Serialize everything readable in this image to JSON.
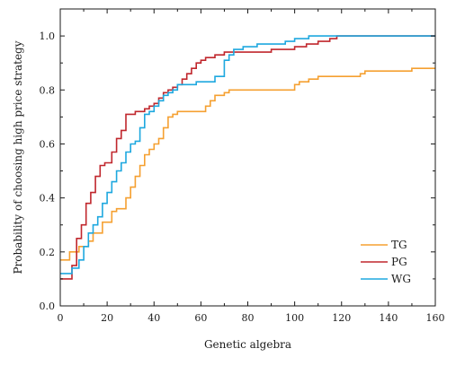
{
  "chart_data": {
    "type": "line",
    "title": "",
    "xlabel": "Genetic algebra",
    "ylabel": "Probability of choosing high price strategy",
    "xlim": [
      0,
      160
    ],
    "ylim": [
      0,
      1.1
    ],
    "xticks": [
      0,
      20,
      40,
      60,
      80,
      100,
      120,
      140,
      160
    ],
    "yticks": [
      0.0,
      0.2,
      0.4,
      0.6,
      0.8,
      1.0
    ],
    "xtick_labels": [
      "0",
      "20",
      "40",
      "60",
      "80",
      "100",
      "120",
      "140",
      "160"
    ],
    "ytick_labels": [
      "0.0",
      "0.2",
      "0.4",
      "0.6",
      "0.8",
      "1.0"
    ],
    "grid": false,
    "legend_position": "bottom-right",
    "series": [
      {
        "name": "TG",
        "color": "#f5a031",
        "x": [
          0,
          3,
          4,
          8,
          12,
          14,
          18,
          22,
          24,
          28,
          30,
          32,
          34,
          36,
          38,
          40,
          42,
          44,
          46,
          48,
          50,
          56,
          60,
          62,
          64,
          66,
          70,
          72,
          76,
          80,
          100,
          102,
          106,
          110,
          120,
          128,
          130,
          140,
          148,
          150,
          160
        ],
        "y": [
          0.17,
          0.17,
          0.2,
          0.22,
          0.24,
          0.27,
          0.31,
          0.35,
          0.36,
          0.4,
          0.44,
          0.48,
          0.52,
          0.56,
          0.58,
          0.6,
          0.62,
          0.66,
          0.7,
          0.71,
          0.72,
          0.72,
          0.72,
          0.74,
          0.76,
          0.78,
          0.79,
          0.8,
          0.8,
          0.8,
          0.82,
          0.83,
          0.84,
          0.85,
          0.85,
          0.86,
          0.87,
          0.87,
          0.87,
          0.88,
          0.88
        ]
      },
      {
        "name": "PG",
        "color": "#c0272d",
        "x": [
          0,
          3,
          5,
          7,
          9,
          11,
          13,
          15,
          17,
          19,
          22,
          24,
          26,
          28,
          30,
          32,
          36,
          38,
          40,
          42,
          44,
          46,
          48,
          50,
          52,
          54,
          56,
          58,
          60,
          62,
          64,
          66,
          68,
          70,
          74,
          80,
          90,
          100,
          105,
          110,
          115,
          118,
          160
        ],
        "y": [
          0.1,
          0.1,
          0.15,
          0.25,
          0.3,
          0.38,
          0.42,
          0.48,
          0.52,
          0.53,
          0.57,
          0.62,
          0.65,
          0.71,
          0.71,
          0.72,
          0.73,
          0.74,
          0.75,
          0.77,
          0.79,
          0.8,
          0.81,
          0.82,
          0.84,
          0.86,
          0.88,
          0.9,
          0.91,
          0.92,
          0.92,
          0.93,
          0.93,
          0.94,
          0.94,
          0.94,
          0.95,
          0.96,
          0.97,
          0.98,
          0.99,
          1.0,
          1.0
        ]
      },
      {
        "name": "WG",
        "color": "#1ea8df",
        "x": [
          0,
          3,
          5,
          8,
          10,
          12,
          14,
          16,
          18,
          20,
          22,
          24,
          26,
          28,
          30,
          32,
          34,
          36,
          38,
          40,
          42,
          44,
          46,
          48,
          50,
          54,
          58,
          62,
          66,
          70,
          72,
          74,
          78,
          84,
          90,
          96,
          100,
          104,
          106,
          160
        ],
        "y": [
          0.12,
          0.12,
          0.14,
          0.17,
          0.22,
          0.27,
          0.3,
          0.33,
          0.38,
          0.42,
          0.46,
          0.5,
          0.53,
          0.57,
          0.6,
          0.61,
          0.66,
          0.71,
          0.72,
          0.74,
          0.76,
          0.78,
          0.79,
          0.8,
          0.82,
          0.82,
          0.83,
          0.83,
          0.85,
          0.91,
          0.93,
          0.95,
          0.96,
          0.97,
          0.97,
          0.98,
          0.99,
          0.99,
          1.0,
          1.0
        ]
      }
    ]
  }
}
